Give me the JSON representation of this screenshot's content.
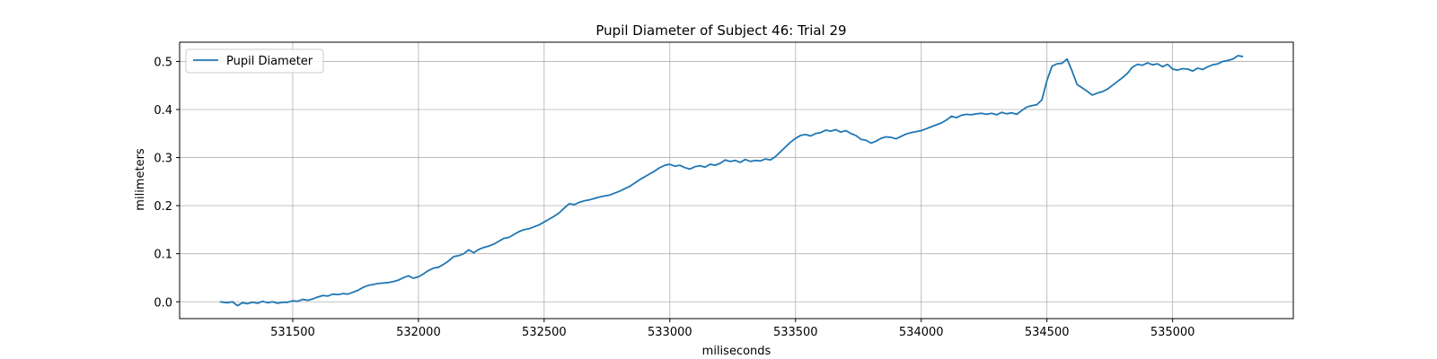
{
  "chart_data": {
    "type": "line",
    "title": "Pupil Diameter of Subject 46: Trial 29",
    "xlabel": "miliseconds",
    "ylabel": "milimeters",
    "xlim": [
      531050,
      535480
    ],
    "ylim": [
      -0.035,
      0.54
    ],
    "xticks": [
      531500,
      532000,
      532500,
      533000,
      533500,
      534000,
      534500,
      535000
    ],
    "yticks": [
      0.0,
      0.1,
      0.2,
      0.3,
      0.4,
      0.5
    ],
    "grid": true,
    "legend_position": "upper-left",
    "series": [
      {
        "name": "Pupil Diameter",
        "color": "#1f77b4",
        "x": [
          531210,
          531240,
          531260,
          531280,
          531300,
          531320,
          531340,
          531360,
          531380,
          531400,
          531420,
          531440,
          531460,
          531480,
          531500,
          531520,
          531540,
          531560,
          531580,
          531600,
          531620,
          531640,
          531660,
          531680,
          531700,
          531720,
          531740,
          531760,
          531780,
          531800,
          531820,
          531840,
          531860,
          531880,
          531900,
          531920,
          531940,
          531960,
          531980,
          532000,
          532020,
          532040,
          532060,
          532080,
          532100,
          532120,
          532140,
          532160,
          532180,
          532200,
          532220,
          532240,
          532260,
          532280,
          532300,
          532320,
          532340,
          532360,
          532380,
          532400,
          532420,
          532440,
          532460,
          532480,
          532500,
          532520,
          532540,
          532560,
          532580,
          532600,
          532620,
          532640,
          532660,
          532680,
          532700,
          532720,
          532740,
          532760,
          532780,
          532800,
          532820,
          532840,
          532860,
          532880,
          532900,
          532920,
          532940,
          532960,
          532980,
          533000,
          533020,
          533040,
          533060,
          533080,
          533100,
          533120,
          533140,
          533160,
          533180,
          533200,
          533220,
          533240,
          533260,
          533280,
          533300,
          533320,
          533340,
          533360,
          533380,
          533400,
          533420,
          533440,
          533460,
          533480,
          533500,
          533520,
          533540,
          533560,
          533580,
          533600,
          533620,
          533640,
          533660,
          533680,
          533700,
          533720,
          533740,
          533760,
          533780,
          533800,
          533820,
          533840,
          533860,
          533880,
          533900,
          533920,
          533940,
          533960,
          533980,
          534000,
          534020,
          534040,
          534060,
          534080,
          534100,
          534120,
          534140,
          534160,
          534180,
          534200,
          534220,
          534240,
          534260,
          534280,
          534300,
          534320,
          534340,
          534360,
          534380,
          534400,
          534420,
          534440,
          534460,
          534480,
          534500,
          534520,
          534540,
          534560,
          534580,
          534600,
          534620,
          534640,
          534660,
          534680,
          534700,
          534720,
          534740,
          534760,
          534780,
          534800,
          534820,
          534840,
          534860,
          534880,
          534900,
          534920,
          534940,
          534960,
          534980,
          535000,
          535020,
          535040,
          535060,
          535080,
          535100,
          535120,
          535140,
          535160,
          535180,
          535200,
          535220,
          535240,
          535260,
          535280
        ],
        "y": [
          0.0,
          -0.002,
          0.0,
          -0.008,
          -0.002,
          -0.004,
          -0.001,
          -0.003,
          0.001,
          -0.002,
          0.0,
          -0.003,
          -0.001,
          -0.001,
          0.002,
          0.001,
          0.005,
          0.003,
          0.006,
          0.01,
          0.013,
          0.012,
          0.016,
          0.015,
          0.017,
          0.016,
          0.02,
          0.024,
          0.03,
          0.034,
          0.036,
          0.038,
          0.039,
          0.04,
          0.042,
          0.045,
          0.05,
          0.054,
          0.049,
          0.052,
          0.058,
          0.065,
          0.07,
          0.072,
          0.078,
          0.085,
          0.094,
          0.096,
          0.1,
          0.108,
          0.102,
          0.109,
          0.113,
          0.116,
          0.12,
          0.126,
          0.132,
          0.134,
          0.14,
          0.146,
          0.15,
          0.152,
          0.156,
          0.16,
          0.166,
          0.172,
          0.178,
          0.185,
          0.195,
          0.204,
          0.202,
          0.207,
          0.21,
          0.212,
          0.215,
          0.218,
          0.22,
          0.222,
          0.226,
          0.23,
          0.235,
          0.24,
          0.247,
          0.254,
          0.26,
          0.266,
          0.272,
          0.279,
          0.284,
          0.286,
          0.282,
          0.284,
          0.279,
          0.276,
          0.281,
          0.283,
          0.28,
          0.286,
          0.284,
          0.288,
          0.295,
          0.292,
          0.294,
          0.29,
          0.296,
          0.292,
          0.294,
          0.293,
          0.297,
          0.295,
          0.302,
          0.312,
          0.322,
          0.332,
          0.34,
          0.346,
          0.348,
          0.345,
          0.35,
          0.352,
          0.357,
          0.355,
          0.358,
          0.353,
          0.356,
          0.35,
          0.346,
          0.338,
          0.336,
          0.33,
          0.334,
          0.34,
          0.343,
          0.342,
          0.339,
          0.344,
          0.349,
          0.352,
          0.354,
          0.356,
          0.36,
          0.364,
          0.368,
          0.372,
          0.378,
          0.386,
          0.383,
          0.388,
          0.39,
          0.389,
          0.391,
          0.392,
          0.39,
          0.392,
          0.389,
          0.394,
          0.391,
          0.393,
          0.39,
          0.398,
          0.405,
          0.408,
          0.41,
          0.42,
          0.46,
          0.49,
          0.495,
          0.496,
          0.505,
          0.48,
          0.452,
          0.445,
          0.438,
          0.43,
          0.434,
          0.437,
          0.442,
          0.45,
          0.458,
          0.466,
          0.475,
          0.488,
          0.494,
          0.492,
          0.497,
          0.493,
          0.495,
          0.489,
          0.494,
          0.484,
          0.482,
          0.485,
          0.484,
          0.48,
          0.486,
          0.483,
          0.489,
          0.493,
          0.495,
          0.5,
          0.502,
          0.505,
          0.512,
          0.51
        ]
      }
    ]
  }
}
